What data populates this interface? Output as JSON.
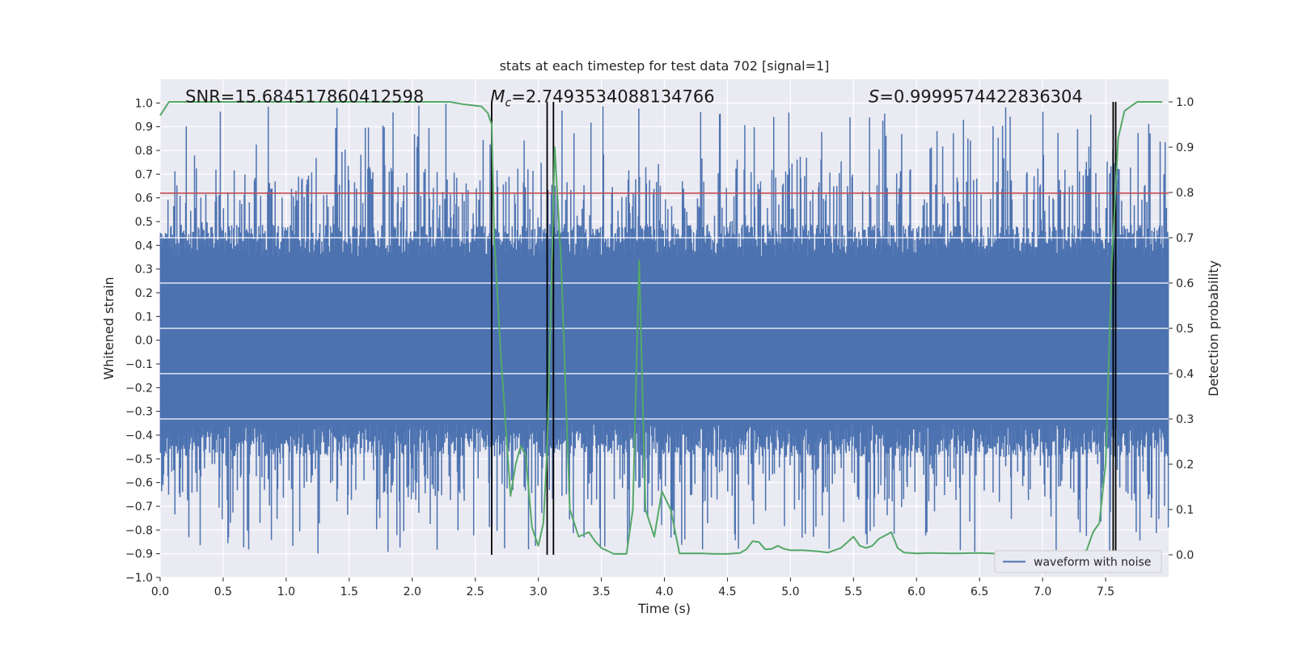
{
  "chart_data": {
    "type": "line",
    "title": "stats at each timestep for test data 702 [signal=1]",
    "xlabel": "Time (s)",
    "ylabel_left": "Whitened strain",
    "ylabel_right": "Detection probability",
    "xlim": [
      0.0,
      8.0
    ],
    "ylim_left": [
      -1.0,
      1.1
    ],
    "ylim_right": [
      -0.05,
      1.05
    ],
    "x_ticks": [
      0.0,
      0.5,
      1.0,
      1.5,
      2.0,
      2.5,
      3.0,
      3.5,
      4.0,
      4.5,
      5.0,
      5.5,
      6.0,
      6.5,
      7.0,
      7.5
    ],
    "x_tick_labels": [
      "0.0",
      "0.5",
      "1.0",
      "1.5",
      "2.0",
      "2.5",
      "3.0",
      "3.5",
      "4.0",
      "4.5",
      "5.0",
      "5.5",
      "6.0",
      "6.5",
      "7.0",
      "7.5"
    ],
    "y_left_ticks": [
      -1.0,
      -0.9,
      -0.8,
      -0.7,
      -0.6,
      -0.5,
      -0.4,
      -0.3,
      -0.2,
      -0.1,
      0.0,
      0.1,
      0.2,
      0.3,
      0.4,
      0.5,
      0.6,
      0.7,
      0.8,
      0.9,
      1.0
    ],
    "y_left_tick_labels": [
      "−1.0",
      "−0.9",
      "−0.8",
      "−0.7",
      "−0.6",
      "−0.5",
      "−0.4",
      "−0.3",
      "−0.2",
      "−0.1",
      "0.0",
      "0.1",
      "0.2",
      "0.3",
      "0.4",
      "0.5",
      "0.6",
      "0.7",
      "0.8",
      "0.9",
      "1.0"
    ],
    "y_right_ticks": [
      0.0,
      0.1,
      0.2,
      0.3,
      0.4,
      0.5,
      0.6,
      0.7,
      0.8,
      0.9,
      1.0
    ],
    "y_right_tick_labels": [
      "0.0",
      "0.1",
      "0.2",
      "0.3",
      "0.4",
      "0.5",
      "0.6",
      "0.7",
      "0.8",
      "0.9",
      "1.0"
    ],
    "annotations": {
      "snr": "SNR=15.684517860412598",
      "mc_symbol": "M",
      "mc_sub": "c",
      "mc_value": "=2.7493534088134766",
      "s_symbol": "S",
      "s_value": "=0.9999574422836304"
    },
    "threshold_left": 0.62,
    "vertical_lines_x": [
      2.63,
      3.07,
      3.12,
      7.56,
      7.58
    ],
    "waveform": {
      "name": "waveform with noise",
      "n_samples": 1600,
      "typical_envelope": 0.42,
      "peak_max": 1.0,
      "peak_min": -0.9
    },
    "probability_series": {
      "name": "detection probability",
      "x": [
        0.0,
        0.07,
        0.5,
        1.0,
        1.5,
        2.0,
        2.3,
        2.4,
        2.55,
        2.6,
        2.63,
        2.65,
        2.7,
        2.78,
        2.82,
        2.86,
        2.9,
        2.95,
        3.0,
        3.04,
        3.07,
        3.1,
        3.13,
        3.18,
        3.25,
        3.32,
        3.4,
        3.45,
        3.5,
        3.6,
        3.7,
        3.75,
        3.8,
        3.85,
        3.92,
        3.98,
        4.05,
        4.12,
        4.2,
        4.3,
        4.4,
        4.5,
        4.6,
        4.65,
        4.7,
        4.75,
        4.8,
        4.85,
        4.9,
        4.95,
        5.0,
        5.1,
        5.2,
        5.3,
        5.4,
        5.5,
        5.55,
        5.6,
        5.65,
        5.7,
        5.8,
        5.85,
        5.9,
        6.0,
        6.1,
        6.3,
        6.5,
        6.7,
        7.0,
        7.2,
        7.3,
        7.35,
        7.4,
        7.45,
        7.5,
        7.55,
        7.6,
        7.65,
        7.7,
        7.75,
        7.8,
        7.85,
        7.9,
        7.95
      ],
      "values": [
        0.97,
        1.0,
        1.0,
        1.0,
        1.0,
        1.0,
        1.0,
        0.995,
        0.99,
        0.975,
        0.95,
        0.7,
        0.45,
        0.13,
        0.2,
        0.24,
        0.22,
        0.06,
        0.02,
        0.07,
        0.23,
        0.55,
        0.9,
        0.65,
        0.1,
        0.04,
        0.05,
        0.03,
        0.015,
        0.002,
        0.002,
        0.1,
        0.65,
        0.1,
        0.04,
        0.14,
        0.1,
        0.003,
        0.003,
        0.003,
        0.002,
        0.002,
        0.004,
        0.012,
        0.03,
        0.028,
        0.012,
        0.013,
        0.02,
        0.013,
        0.01,
        0.01,
        0.008,
        0.005,
        0.015,
        0.04,
        0.02,
        0.015,
        0.02,
        0.035,
        0.05,
        0.015,
        0.005,
        0.003,
        0.004,
        0.003,
        0.004,
        0.002,
        0.002,
        0.004,
        0.006,
        0.01,
        0.05,
        0.07,
        0.2,
        0.65,
        0.92,
        0.98,
        0.99,
        1.0,
        1.0,
        1.0,
        1.0,
        1.0
      ]
    },
    "legend_position": "lower-right",
    "grid": true,
    "colors": {
      "axes_bg": "#EAEAF2",
      "grid": "#FFFFFF",
      "waveform": "#4C72B0",
      "probability": "#55A868",
      "threshold": "#C44E52",
      "vlines": "#000000"
    }
  }
}
